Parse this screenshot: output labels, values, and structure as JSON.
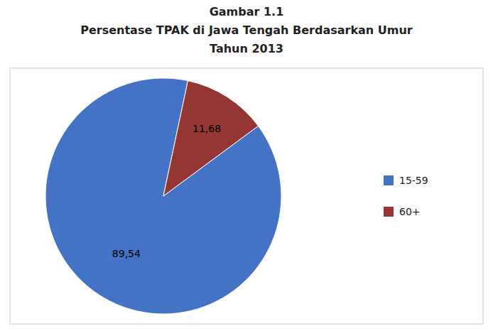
{
  "chart_data": {
    "type": "pie",
    "title": [
      "Gambar 1.1",
      "Persentase TPAK di Jawa Tengah Berdasarkan Umur",
      "Tahun 2013"
    ],
    "categories": [
      "15-59",
      "60+"
    ],
    "values": [
      89.54,
      11.68
    ],
    "value_labels": [
      "89,54",
      "11,68"
    ],
    "colors": [
      "#4472C4",
      "#943634"
    ],
    "data_labels": true,
    "legend": "right"
  }
}
